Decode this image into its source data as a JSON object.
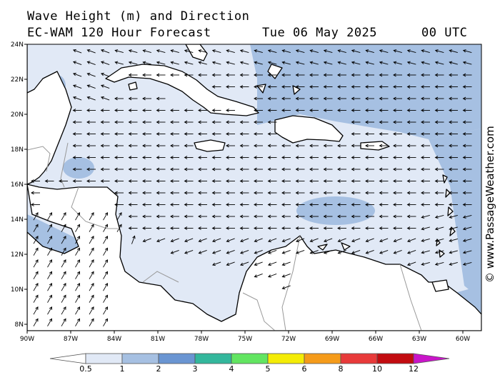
{
  "title_line1": "Wave Height (m) and Direction",
  "title_line2": "EC-WAM 120 Hour Forecast",
  "valid_time": "Tue 06 May 2025",
  "utc_label": "00 UTC",
  "watermark": "© www.PassageWeather.com",
  "lat_labels": [
    "24N",
    "22N",
    "20N",
    "18N",
    "16N",
    "14N",
    "12N",
    "10N",
    "8N"
  ],
  "lon_labels": [
    "90W",
    "87W",
    "84W",
    "81W",
    "78W",
    "75W",
    "72W",
    "69W",
    "66W",
    "63W",
    "60W"
  ],
  "colorbar": {
    "labels": [
      "0.5",
      "1",
      "2",
      "3",
      "4",
      "5",
      "6",
      "8",
      "10",
      "12"
    ],
    "colors": [
      "#e1e9f6",
      "#a6c0e2",
      "#6a95d2",
      "#33b79c",
      "#62e561",
      "#f4ec06",
      "#f59b1a",
      "#e83a3a",
      "#c20c10",
      "#c915c9"
    ]
  },
  "map": {
    "land_color": "#ffffff",
    "ocean_low_color": "#e1e9f6",
    "ocean_mid_color": "#a6c0e2",
    "coast_color": "#000000",
    "border_color": "#999999",
    "arrow_color": "#000000"
  }
}
